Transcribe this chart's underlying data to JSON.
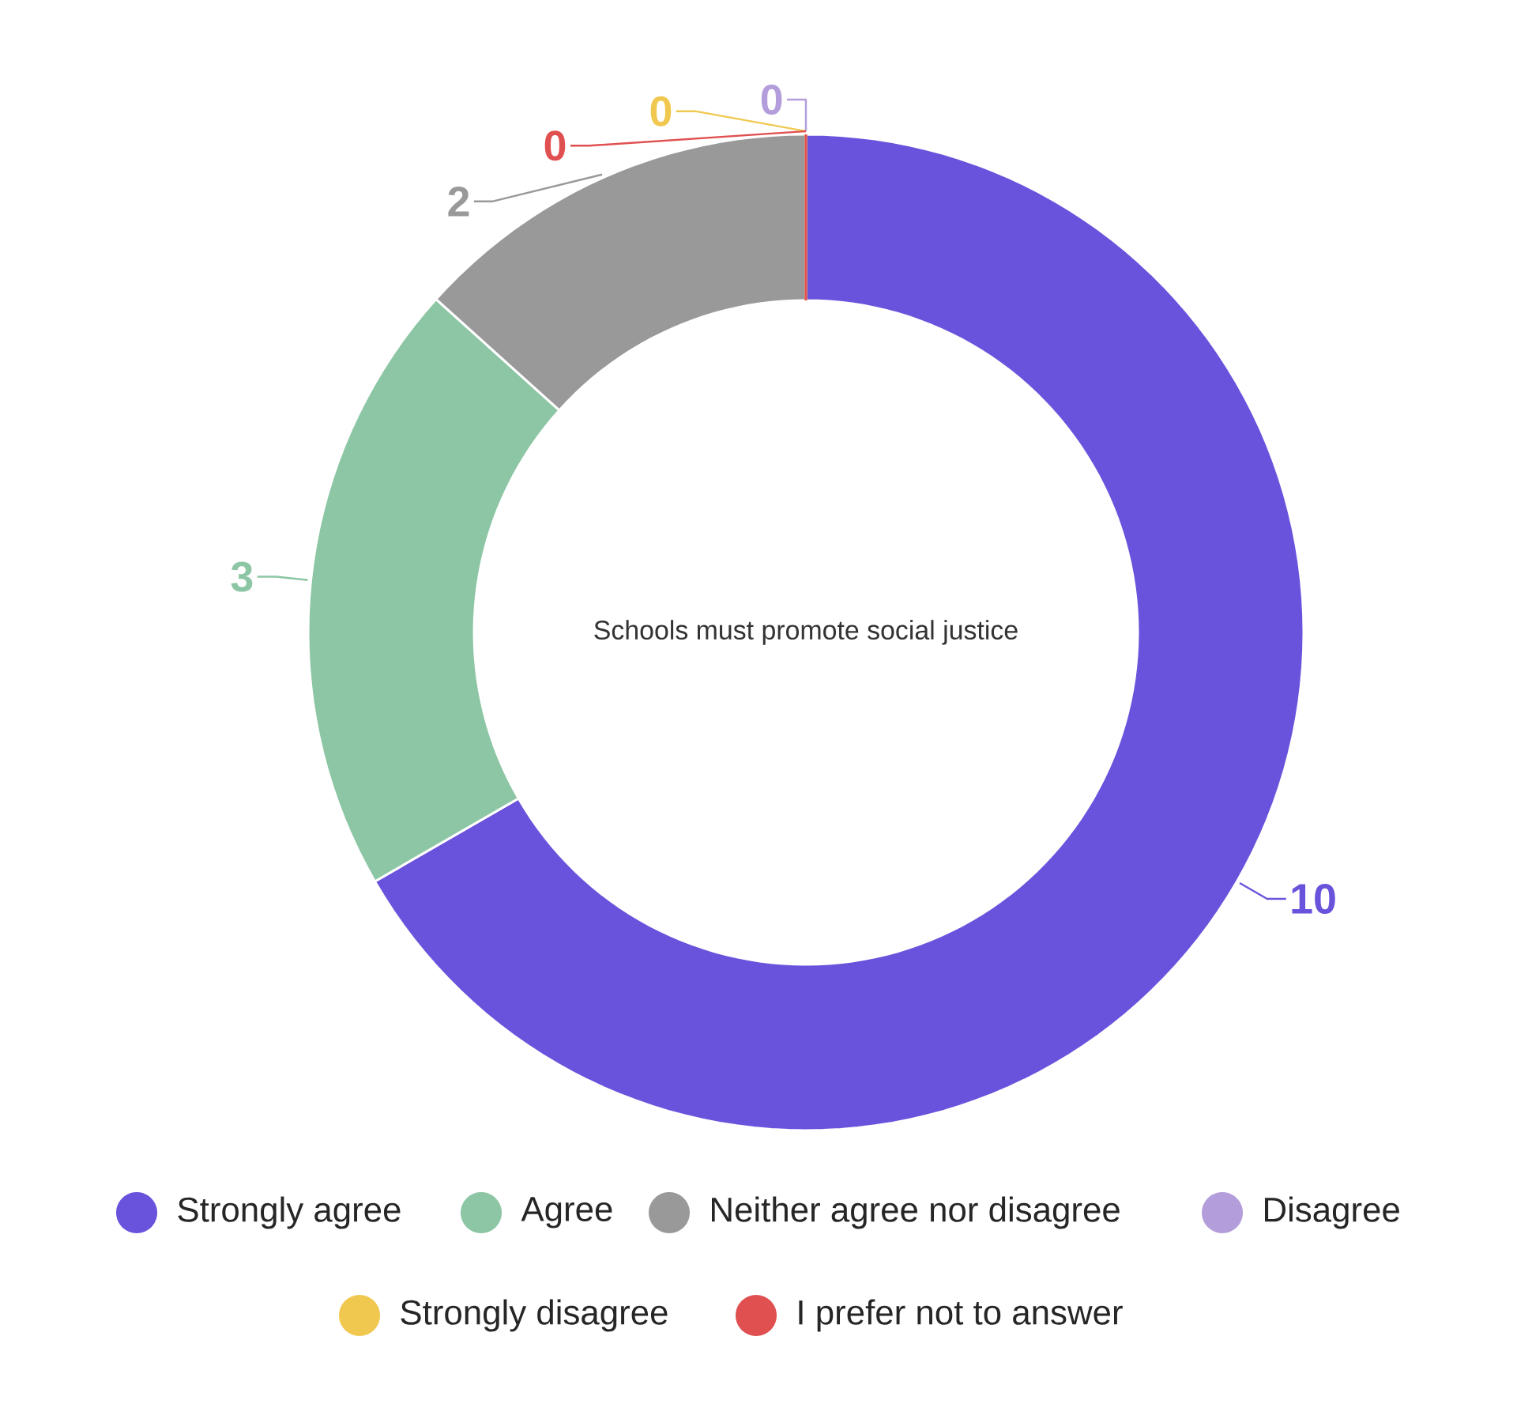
{
  "chart_data": {
    "type": "donut",
    "title": "Schools must promote social justice",
    "categories": [
      "Strongly agree",
      "Agree",
      "Neither agree nor disagree",
      "Disagree",
      "Strongly disagree",
      "I prefer not to answer"
    ],
    "values": [
      10,
      3,
      2,
      0,
      0,
      0
    ],
    "colors": [
      "#6a53dc",
      "#8cc6a4",
      "#999999",
      "#b39ddb",
      "#f0c850",
      "#e05050"
    ],
    "value_labels": [
      "10",
      "3",
      "2",
      "0",
      "0",
      "0"
    ],
    "legend": "bottom"
  }
}
